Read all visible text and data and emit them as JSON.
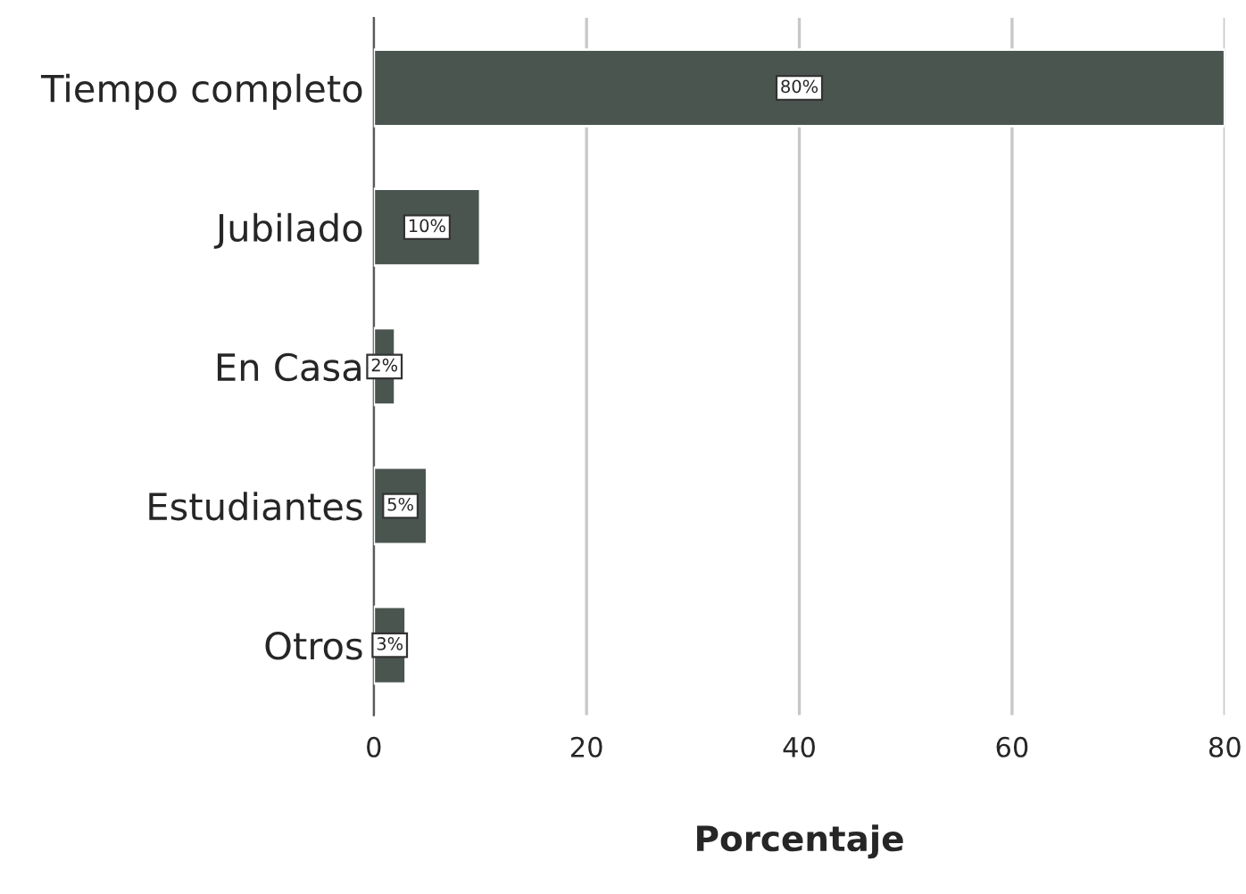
{
  "chart_data": {
    "type": "bar",
    "orientation": "horizontal",
    "xlabel": "Porcentaje",
    "categories": [
      "Tiempo completo",
      "Jubilado",
      "En Casa",
      "Estudiantes",
      "Otros"
    ],
    "values": [
      80,
      10,
      2,
      5,
      3
    ],
    "value_labels": [
      "80%",
      "10%",
      "2%",
      "5%",
      "3%"
    ],
    "color": "#4b5550",
    "xlim": [
      0,
      80
    ],
    "xticks": [
      0,
      20,
      40,
      60,
      80
    ],
    "grid": "x"
  }
}
